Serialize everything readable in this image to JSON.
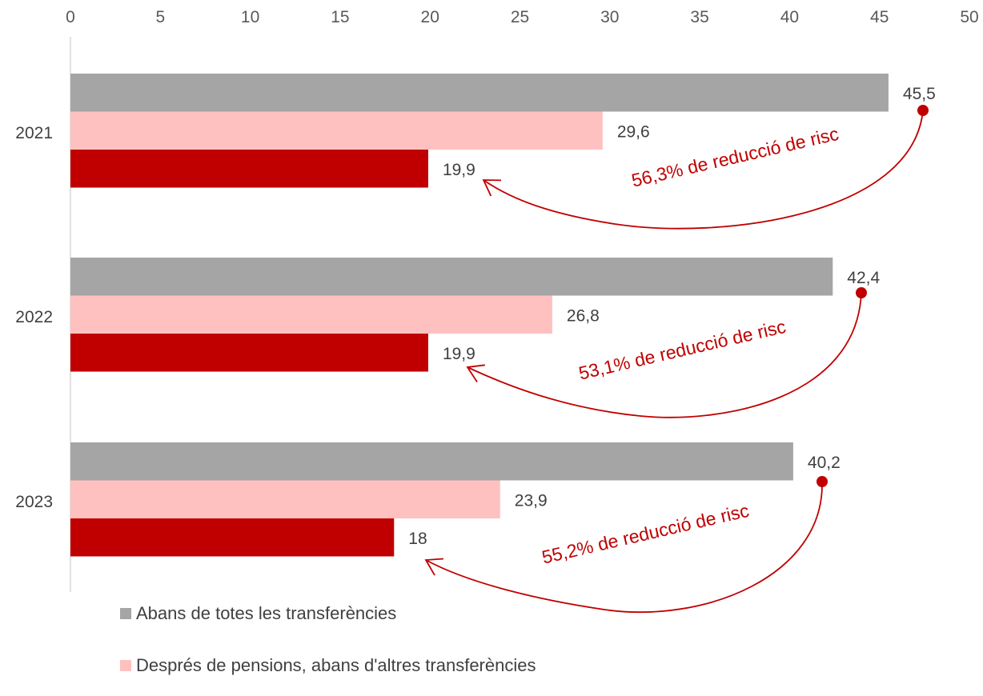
{
  "chart_data": {
    "type": "bar",
    "orientation": "horizontal",
    "categories": [
      "2021",
      "2022",
      "2023"
    ],
    "series": [
      {
        "name": "Abans de totes les transferències",
        "color": "#a5a5a5",
        "values": [
          45.5,
          42.4,
          40.2
        ],
        "labels": [
          "45,5",
          "42,4",
          "40,2"
        ]
      },
      {
        "name": "Després de pensions, abans d'altres transferències",
        "color": "#ffc0c0",
        "values": [
          29.6,
          26.8,
          23.9
        ],
        "labels": [
          "29,6",
          "26,8",
          "23,9"
        ]
      },
      {
        "name": "",
        "color": "#c00000",
        "values": [
          19.9,
          19.9,
          18
        ],
        "labels": [
          "19,9",
          "19,9",
          "18"
        ]
      }
    ],
    "xlim": [
      0,
      50
    ],
    "x_ticks": [
      "0",
      "5",
      "10",
      "15",
      "20",
      "25",
      "30",
      "35",
      "40",
      "45",
      "50"
    ],
    "x_axis_position": "top",
    "grid": false,
    "legend_position": "bottom-left",
    "annotations": [
      "56,3% de reducció de risc",
      "53,1% de reducció de risc",
      "55,2% de reducció de risc"
    ],
    "annotation_color": "#c00000"
  }
}
